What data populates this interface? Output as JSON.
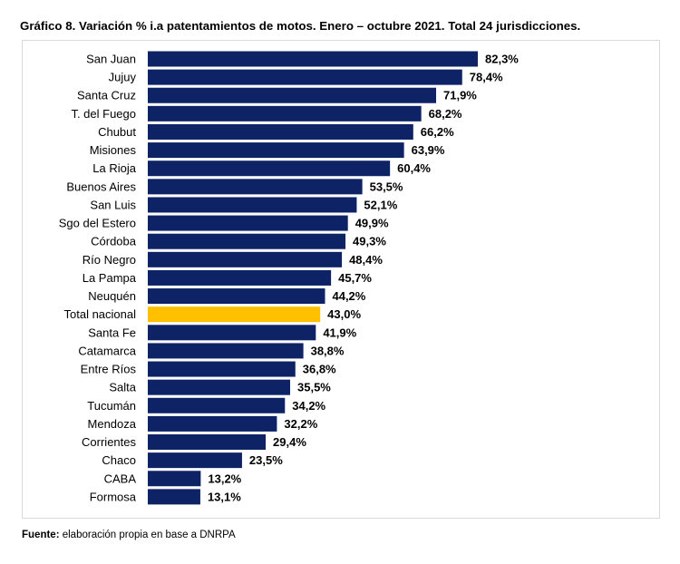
{
  "title": "Gráfico 8. Variación % i.a patentamientos de motos. Enero – octubre 2021. Total 24 jurisdicciones.",
  "footer": {
    "label": "Fuente:",
    "text": " elaboración propia en base a DNRPA"
  },
  "chart_data": {
    "type": "bar",
    "orientation": "horizontal",
    "title": "Gráfico 8. Variación % i.a patentamientos de motos. Enero – octubre 2021. Total 24 jurisdicciones.",
    "categories": [
      "San Juan",
      "Jujuy",
      "Santa Cruz",
      "T. del Fuego",
      "Chubut",
      "Misiones",
      "La Rioja",
      "Buenos Aires",
      "San Luis",
      "Sgo del Estero",
      "Córdoba",
      "Río Negro",
      "La Pampa",
      "Neuquén",
      "Total nacional",
      "Santa Fe",
      "Catamarca",
      "Entre Ríos",
      "Salta",
      "Tucumán",
      "Mendoza",
      "Corrientes",
      "Chaco",
      "CABA",
      "Formosa"
    ],
    "values": [
      82.3,
      78.4,
      71.9,
      68.2,
      66.2,
      63.9,
      60.4,
      53.5,
      52.1,
      49.9,
      49.3,
      48.4,
      45.7,
      44.2,
      43.0,
      41.9,
      38.8,
      36.8,
      35.5,
      34.2,
      32.2,
      29.4,
      23.5,
      13.2,
      13.1
    ],
    "data_labels": [
      "82,3%",
      "78,4%",
      "71,9%",
      "68,2%",
      "66,2%",
      "63,9%",
      "60,4%",
      "53,5%",
      "52,1%",
      "49,9%",
      "49,3%",
      "48,4%",
      "45,7%",
      "44,2%",
      "43,0%",
      "41,9%",
      "38,8%",
      "36,8%",
      "35,5%",
      "34,2%",
      "32,2%",
      "29,4%",
      "23,5%",
      "13,2%",
      "13,1%"
    ],
    "xlim": [
      0,
      100
    ],
    "grid": false,
    "colors": {
      "bar": "#0d2366",
      "highlight": "#ffc000",
      "highlight_category": "Total nacional"
    }
  }
}
